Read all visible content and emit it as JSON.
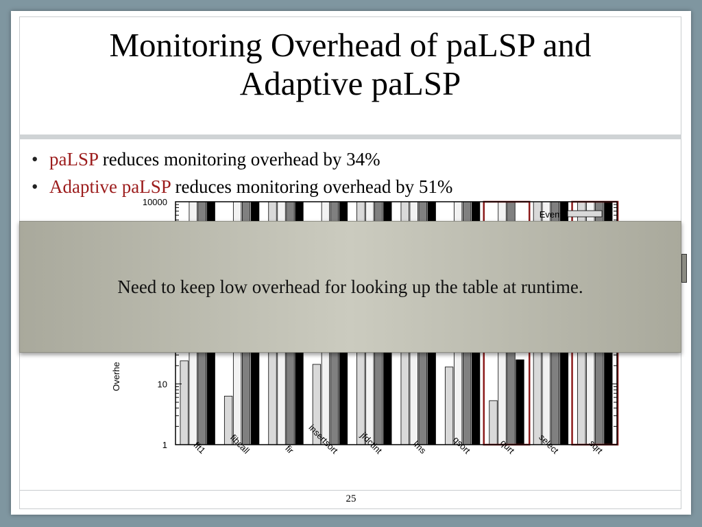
{
  "slide": {
    "title_line1": "Monitoring Overhead of paLSP and",
    "title_line2": "Adaptive paLSP",
    "bullets": [
      {
        "highlight": "paLSP",
        "rest": " reduces monitoring overhead by 34%"
      },
      {
        "highlight": "Adaptive paLSP",
        "rest": " reduces monitoring overhead by 51%"
      }
    ],
    "overlay_text": "Need to keep low overhead for looking up the table at runtime.",
    "page_number": "25",
    "colors": {
      "highlight": "#9c1c1c",
      "overlay": "#bcbcb0",
      "frame_red": "#8b1a1a"
    }
  },
  "chart_data": {
    "type": "bar",
    "scale": "log",
    "ylim": [
      1,
      10000
    ],
    "yticks": [
      1,
      10,
      10000
    ],
    "ylabel": "Overhe",
    "categories": [
      "fft1",
      "fibcall",
      "fir",
      "insertsort",
      "jfdctint",
      "lms",
      "qsort",
      "qurt",
      "select",
      "sqrt"
    ],
    "series": [
      {
        "name": "Event",
        "color": "#d9d9d9",
        "values": [
          24,
          6.3,
          null,
          21,
          null,
          null,
          19,
          5.3,
          null,
          null
        ]
      },
      {
        "name": "",
        "color": "#f2f2f2",
        "values": [
          null,
          null,
          null,
          null,
          null,
          null,
          null,
          null,
          null,
          null
        ]
      },
      {
        "name": "",
        "color": "#808080",
        "values": [
          null,
          null,
          null,
          null,
          null,
          null,
          null,
          null,
          null,
          null
        ]
      },
      {
        "name": "",
        "color": "#000000",
        "values": [
          null,
          null,
          null,
          null,
          null,
          null,
          null,
          25,
          null,
          null
        ]
      }
    ],
    "highlighted_categories": [
      "qurt",
      "sqrt"
    ],
    "legend": {
      "position": "top-right",
      "visible_entries": [
        "Event"
      ]
    }
  }
}
